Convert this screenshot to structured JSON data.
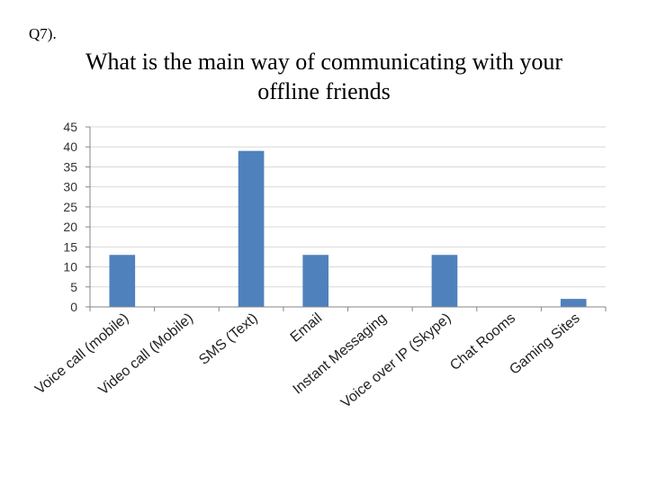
{
  "question_label": "Q7).",
  "chart_data": {
    "type": "bar",
    "title": "What is the main way of communicating with your offline friends",
    "categories": [
      "Voice call (mobile)",
      "Video call (Mobile)",
      "SMS (Text)",
      "Email",
      "Instant Messaging",
      "Voice over IP (Skype)",
      "Chat Rooms",
      "Gaming Sites"
    ],
    "values": [
      13,
      0,
      39,
      13,
      0,
      13,
      0,
      2
    ],
    "ylim": [
      0,
      45
    ],
    "yticks": [
      0,
      5,
      10,
      15,
      20,
      25,
      30,
      35,
      40,
      45
    ],
    "grid": true,
    "xlabel": "",
    "ylabel": "",
    "bar_color": "#4f81bd",
    "grid_color": "#d9d9d9"
  }
}
